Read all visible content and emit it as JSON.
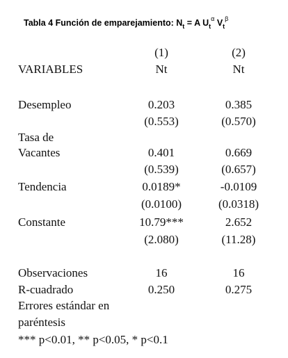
{
  "title": {
    "parts": [
      "Tabla 4 Función de emparejamiento: N",
      "t",
      " = A U",
      "t",
      "α",
      " V",
      "t",
      "β"
    ]
  },
  "table": {
    "rows": [
      {
        "c1": "(1)",
        "c2": "(2)"
      },
      {
        "label": "VARIABLES",
        "c1": "Nt",
        "c2": "Nt"
      },
      {
        "label": "Desempleo",
        "c1": "0.203",
        "c2": "0.385"
      },
      {
        "c1": "(0.553)",
        "c2": "(0.570)"
      },
      {
        "label": "Tasa de"
      },
      {
        "label": "Vacantes",
        "c1": "0.401",
        "c2": "0.669"
      },
      {
        "c1": "(0.539)",
        "c2": "(0.657)"
      },
      {
        "label": "Tendencia",
        "c1": "0.0189*",
        "c2": "-0.0109"
      },
      {
        "c1": "(0.0100)",
        "c2": "(0.0318)"
      },
      {
        "label": "Constante",
        "c1": "10.79***",
        "c2": "2.652"
      },
      {
        "c1": "(2.080)",
        "c2": "(11.28)"
      },
      {
        "label": "Observaciones",
        "c1": "16",
        "c2": "16"
      },
      {
        "label": "R-cuadrado",
        "c1": "0.250",
        "c2": "0.275"
      }
    ]
  },
  "notes": [
    "Errores estándar en",
    "paréntesis",
    "*** p<0.01, ** p<0.05, * p<0.1"
  ]
}
